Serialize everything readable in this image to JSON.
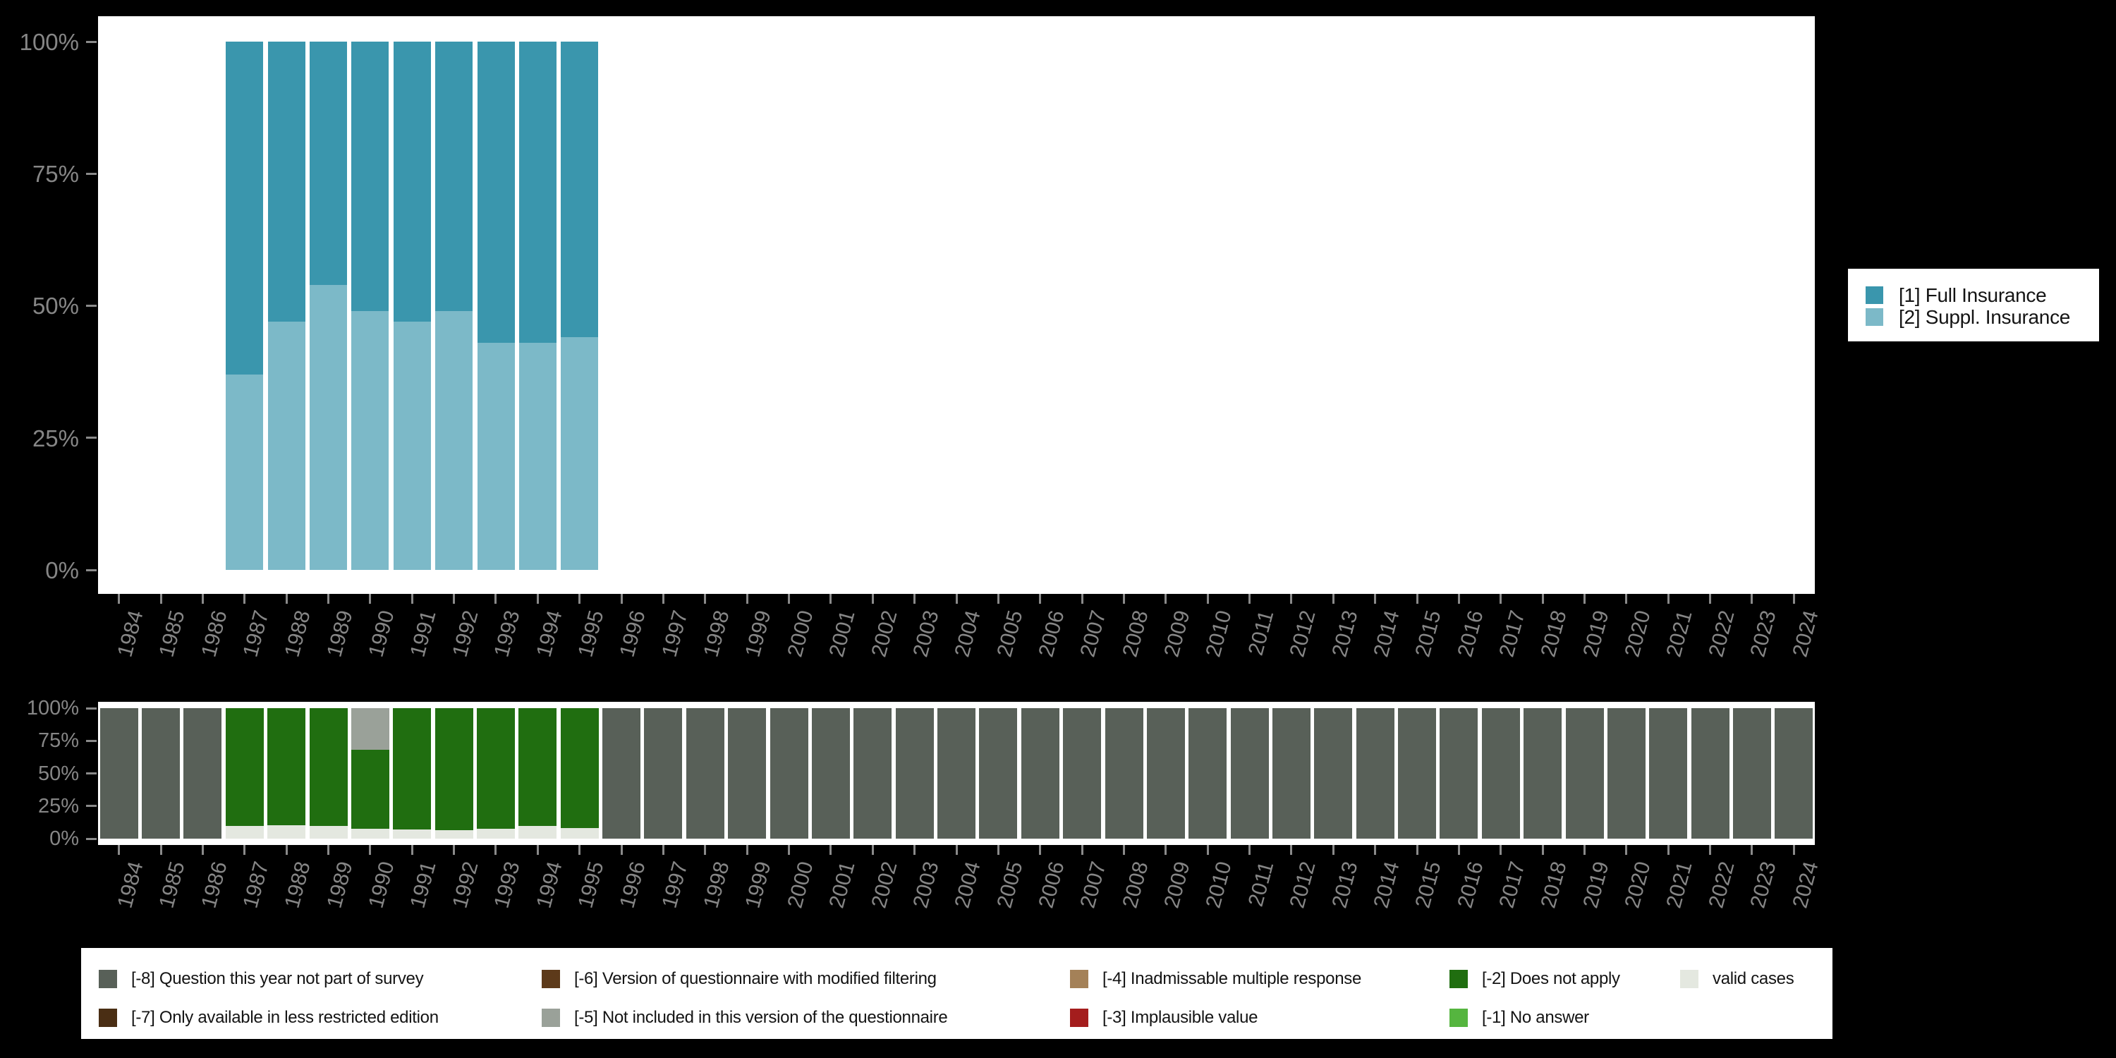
{
  "colors": {
    "background": "#000000",
    "panel": "#ffffff",
    "axis_text": "#868686",
    "full": "#3a96ad",
    "suppl": "#7cb9c8",
    "m8": "#586058",
    "m7": "#4a2e14",
    "m6": "#5d3a1a",
    "m5": "#9aa199",
    "m4": "#a48158",
    "m3": "#a41d1d",
    "m2": "#206e10",
    "m1": "#55b53f",
    "valid": "#e4e8e0"
  },
  "chart_data": [
    {
      "type": "bar",
      "stacked": true,
      "title": "",
      "xlabel": "",
      "ylabel": "",
      "ylim": [
        0,
        100
      ],
      "grid": false,
      "legend_position": "right",
      "yticks": [
        "100%",
        "75%",
        "50%",
        "25%",
        "0%"
      ],
      "categories": [
        "1984",
        "1985",
        "1986",
        "1987",
        "1988",
        "1989",
        "1990",
        "1991",
        "1992",
        "1993",
        "1994",
        "1995",
        "1996",
        "1997",
        "1998",
        "1999",
        "2000",
        "2001",
        "2002",
        "2003",
        "2004",
        "2005",
        "2006",
        "2007",
        "2008",
        "2009",
        "2010",
        "2011",
        "2012",
        "2013",
        "2014",
        "2015",
        "2016",
        "2017",
        "2018",
        "2019",
        "2020",
        "2021",
        "2022",
        "2023",
        "2024"
      ],
      "series": [
        {
          "key": "suppl",
          "name": "[2] Suppl. Insurance",
          "values": [
            null,
            null,
            null,
            37,
            47,
            54,
            49,
            47,
            49,
            43,
            43,
            44,
            null,
            null,
            null,
            null,
            null,
            null,
            null,
            null,
            null,
            null,
            null,
            null,
            null,
            null,
            null,
            null,
            null,
            null,
            null,
            null,
            null,
            null,
            null,
            null,
            null,
            null,
            null,
            null,
            null
          ]
        },
        {
          "key": "full",
          "name": "[1] Full Insurance",
          "values": [
            null,
            null,
            null,
            63,
            53,
            46,
            51,
            53,
            51,
            57,
            57,
            56,
            null,
            null,
            null,
            null,
            null,
            null,
            null,
            null,
            null,
            null,
            null,
            null,
            null,
            null,
            null,
            null,
            null,
            null,
            null,
            null,
            null,
            null,
            null,
            null,
            null,
            null,
            null,
            null,
            null
          ]
        }
      ],
      "legend": [
        {
          "key": "full",
          "label": "[1] Full Insurance"
        },
        {
          "key": "suppl",
          "label": "[2] Suppl. Insurance"
        }
      ]
    },
    {
      "type": "bar",
      "stacked": true,
      "title": "",
      "xlabel": "",
      "ylabel": "",
      "ylim": [
        0,
        100
      ],
      "grid": false,
      "legend_position": "bottom",
      "yticks": [
        "100%",
        "75%",
        "50%",
        "25%",
        "0%"
      ],
      "categories": [
        "1984",
        "1985",
        "1986",
        "1987",
        "1988",
        "1989",
        "1990",
        "1991",
        "1992",
        "1993",
        "1994",
        "1995",
        "1996",
        "1997",
        "1998",
        "1999",
        "2000",
        "2001",
        "2002",
        "2003",
        "2004",
        "2005",
        "2006",
        "2007",
        "2008",
        "2009",
        "2010",
        "2011",
        "2012",
        "2013",
        "2014",
        "2015",
        "2016",
        "2017",
        "2018",
        "2019",
        "2020",
        "2021",
        "2022",
        "2023",
        "2024"
      ],
      "series": [
        {
          "key": "valid",
          "name": "valid cases",
          "values": [
            0,
            0,
            0,
            10,
            10.5,
            10,
            7.5,
            7,
            6.5,
            7.5,
            10,
            8,
            0,
            0,
            0,
            0,
            0,
            0,
            0,
            0,
            0,
            0,
            0,
            0,
            0,
            0,
            0,
            0,
            0,
            0,
            0,
            0,
            0,
            0,
            0,
            0,
            0,
            0,
            0,
            0,
            0
          ]
        },
        {
          "key": "m2",
          "name": "[-2] Does not apply",
          "values": [
            0,
            0,
            0,
            90,
            89.5,
            90,
            60.5,
            93,
            93.5,
            92.5,
            90,
            92,
            0,
            0,
            0,
            0,
            0,
            0,
            0,
            0,
            0,
            0,
            0,
            0,
            0,
            0,
            0,
            0,
            0,
            0,
            0,
            0,
            0,
            0,
            0,
            0,
            0,
            0,
            0,
            0,
            0
          ]
        },
        {
          "key": "m5",
          "name": "[-5] Not included in this version of the questionnaire",
          "values": [
            0,
            0,
            0,
            0,
            0,
            0,
            32,
            0,
            0,
            0,
            0,
            0,
            0,
            0,
            0,
            0,
            0,
            0,
            0,
            0,
            0,
            0,
            0,
            0,
            0,
            0,
            0,
            0,
            0,
            0,
            0,
            0,
            0,
            0,
            0,
            0,
            0,
            0,
            0,
            0,
            0
          ]
        },
        {
          "key": "m8",
          "name": "[-8] Question this year not part of survey",
          "values": [
            100,
            100,
            100,
            0,
            0,
            0,
            0,
            0,
            0,
            0,
            0,
            0,
            100,
            100,
            100,
            100,
            100,
            100,
            100,
            100,
            100,
            100,
            100,
            100,
            100,
            100,
            100,
            100,
            100,
            100,
            100,
            100,
            100,
            100,
            100,
            100,
            100,
            100,
            100,
            100,
            100
          ]
        }
      ],
      "legend": [
        {
          "key": "m8",
          "label": "[-8] Question this year not part of survey"
        },
        {
          "key": "m7",
          "label": "[-7] Only available in less restricted edition"
        },
        {
          "key": "m6",
          "label": "[-6] Version of questionnaire with modified filtering"
        },
        {
          "key": "m5",
          "label": "[-5] Not included in this version of the questionnaire"
        },
        {
          "key": "m4",
          "label": "[-4] Inadmissable multiple response"
        },
        {
          "key": "m3",
          "label": "[-3] Implausible value"
        },
        {
          "key": "m2",
          "label": "[-2] Does not apply"
        },
        {
          "key": "m1",
          "label": "[-1] No answer"
        },
        {
          "key": "valid",
          "label": "valid cases"
        }
      ]
    }
  ]
}
